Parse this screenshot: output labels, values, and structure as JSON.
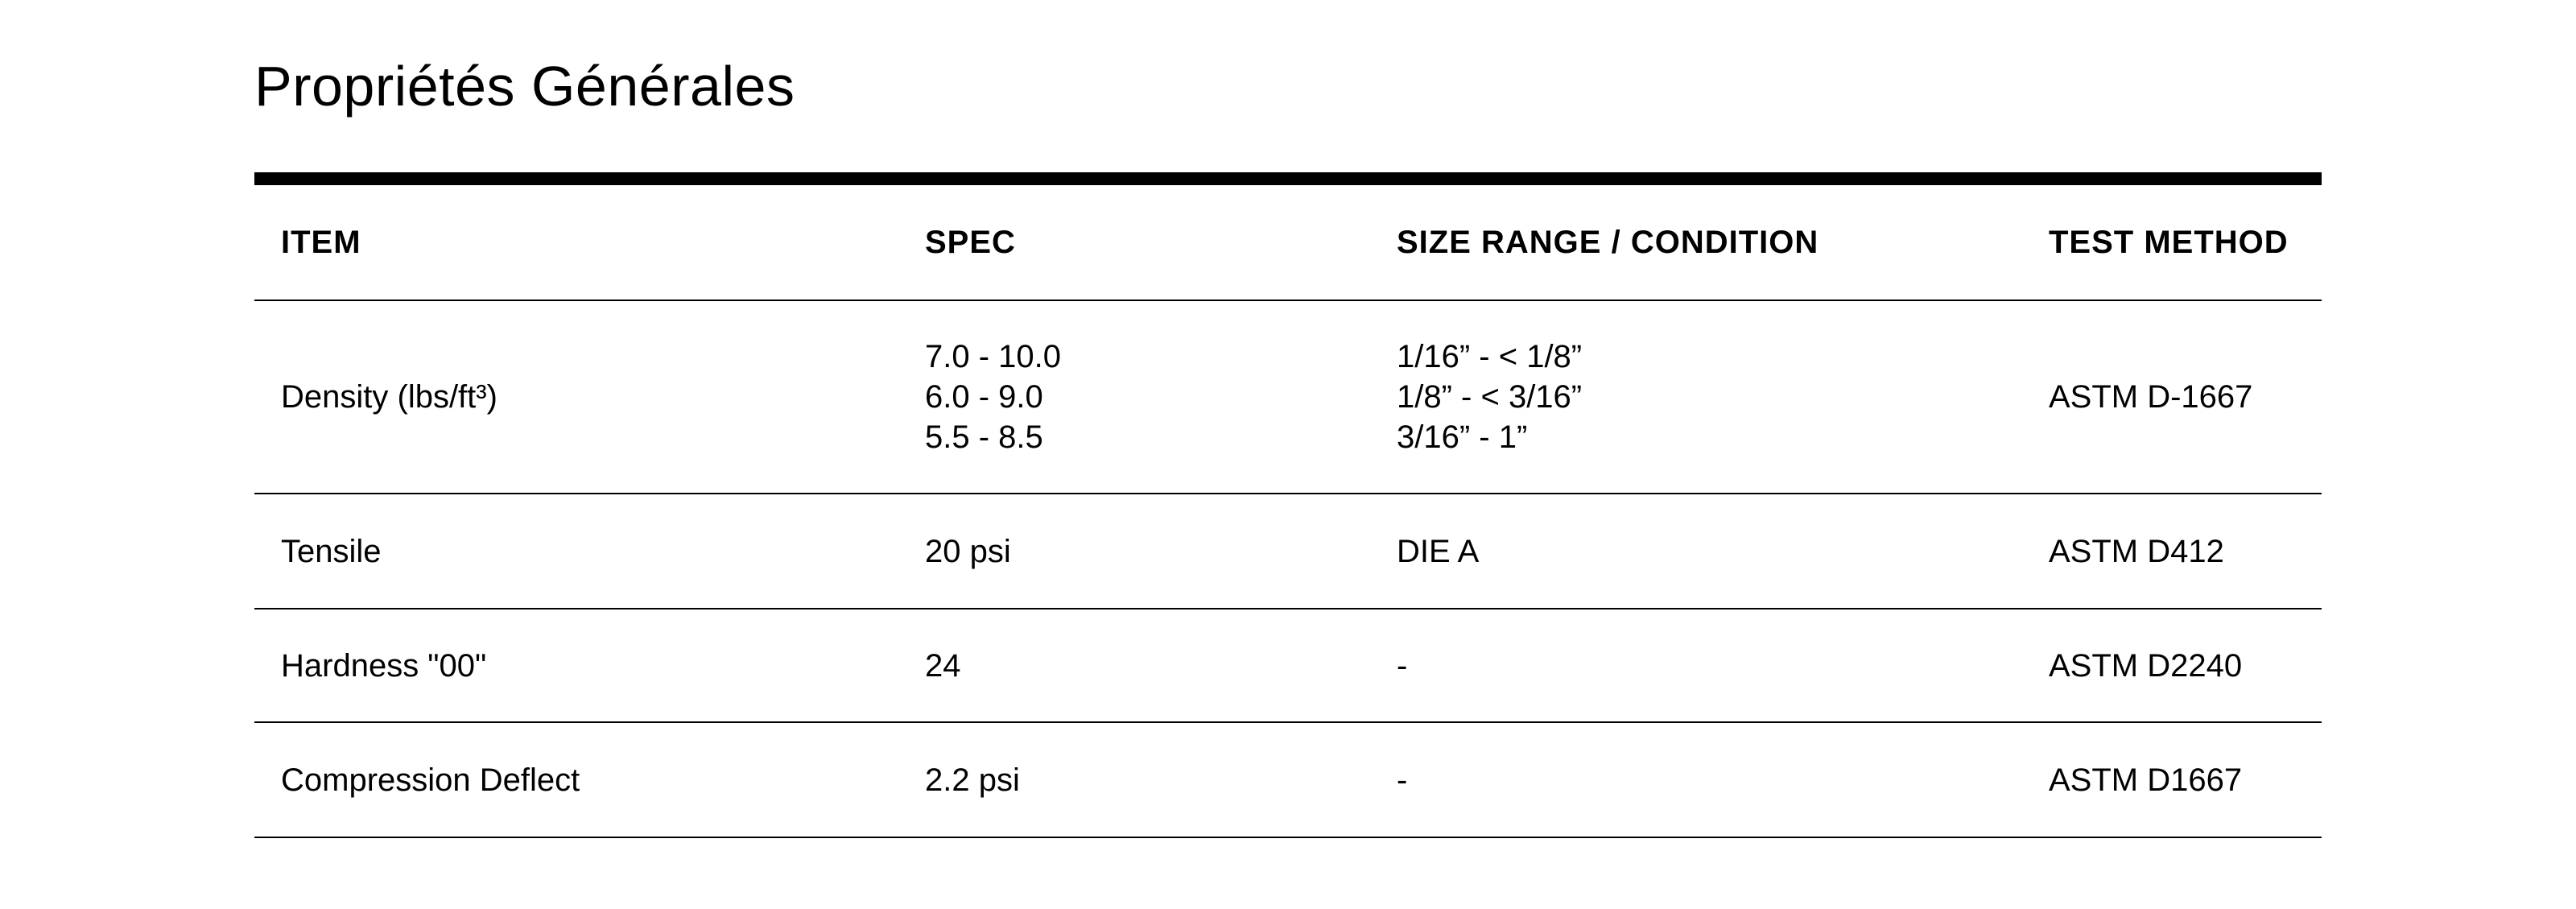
{
  "title": "Propriétés Générales",
  "table": {
    "headers": [
      "ITEM",
      "SPEC",
      "SIZE RANGE / CONDITION",
      "TEST METHOD"
    ],
    "rows": [
      {
        "item": "Density (lbs/ft³)",
        "spec": [
          "7.0 - 10.0",
          "6.0 - 9.0",
          "5.5 - 8.5"
        ],
        "condition": [
          "1/16” - < 1/8”",
          "1/8” - < 3/16”",
          "3/16” - 1”"
        ],
        "method": "ASTM D-1667"
      },
      {
        "item": "Tensile",
        "spec": [
          "20 psi"
        ],
        "condition": [
          "DIE A"
        ],
        "method": "ASTM D412"
      },
      {
        "item": "Hardness \"00\"",
        "spec": [
          "24"
        ],
        "condition": [
          "-"
        ],
        "method": "ASTM D2240"
      },
      {
        "item": "Compression Deflect",
        "spec": [
          "2.2 psi"
        ],
        "condition": [
          "-"
        ],
        "method": "ASTM D1667"
      }
    ]
  }
}
